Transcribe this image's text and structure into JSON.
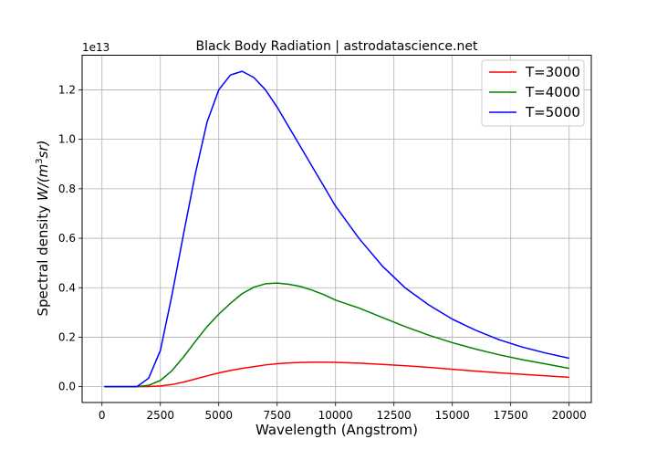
{
  "chart_data": {
    "type": "line",
    "title": "Black Body Radiation | astrodatascience.net",
    "xlabel": "Wavelength (Angstrom)",
    "ylabel_prefix": "Spectral density ",
    "ylabel_unit_main": "W/(m",
    "ylabel_unit_sup": "3",
    "ylabel_unit_tail": "sr)",
    "y_offset_label": "1e13",
    "xlim": [
      -850,
      20950
    ],
    "ylim": [
      -0.064,
      1.34
    ],
    "xticks": [
      0,
      2500,
      5000,
      7500,
      10000,
      12500,
      15000,
      17500,
      20000
    ],
    "yticks": [
      0.0,
      0.2,
      0.4,
      0.6,
      0.8,
      1.0,
      1.2
    ],
    "ytick_labels": [
      "0.0",
      "0.2",
      "0.4",
      "0.6",
      "0.8",
      "1.0",
      "1.2"
    ],
    "grid": true,
    "legend_position": "top-right",
    "x": [
      100,
      1000,
      1500,
      2000,
      2500,
      3000,
      3500,
      4000,
      4500,
      5000,
      5500,
      6000,
      6500,
      7000,
      7500,
      8000,
      8500,
      9000,
      9500,
      10000,
      11000,
      12000,
      13000,
      14000,
      15000,
      16000,
      17000,
      18000,
      19000,
      20000
    ],
    "series": [
      {
        "name": "T=3000",
        "color": "#ff0000",
        "values": [
          0.0,
          0.0,
          0.0,
          0.0004,
          0.0027,
          0.0087,
          0.0186,
          0.0309,
          0.0437,
          0.0555,
          0.0656,
          0.074,
          0.081,
          0.088,
          0.093,
          0.096,
          0.098,
          0.099,
          0.099,
          0.0985,
          0.095,
          0.09,
          0.0845,
          0.078,
          0.07,
          0.063,
          0.056,
          0.05,
          0.044,
          0.038
        ]
      },
      {
        "name": "T=4000",
        "color": "#008000",
        "values": [
          0.0,
          0.0,
          0.0,
          0.0055,
          0.025,
          0.0651,
          0.121,
          0.183,
          0.243,
          0.293,
          0.337,
          0.376,
          0.402,
          0.416,
          0.419,
          0.414,
          0.405,
          0.39,
          0.372,
          0.35,
          0.318,
          0.28,
          0.242,
          0.208,
          0.178,
          0.152,
          0.129,
          0.109,
          0.092,
          0.074
        ]
      },
      {
        "name": "T=5000",
        "color": "#0000ff",
        "values": [
          0.0,
          0.0,
          0.0,
          0.0345,
          0.146,
          0.372,
          0.621,
          0.862,
          1.07,
          1.2,
          1.26,
          1.275,
          1.25,
          1.2,
          1.13,
          1.05,
          0.97,
          0.89,
          0.81,
          0.73,
          0.6,
          0.488,
          0.398,
          0.33,
          0.273,
          0.228,
          0.19,
          0.16,
          0.136,
          0.115
        ]
      }
    ]
  }
}
